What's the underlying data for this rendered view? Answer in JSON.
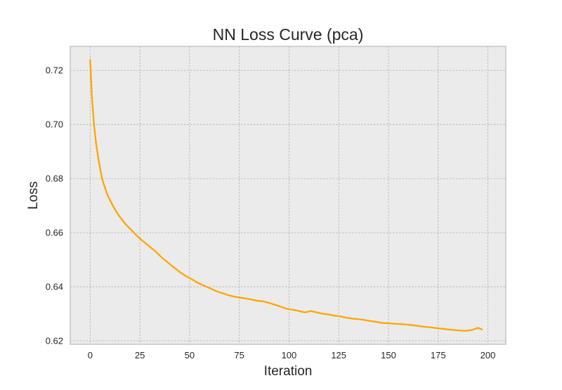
{
  "chart_data": {
    "type": "line",
    "title": "NN Loss Curve (pca)",
    "xlabel": "Iteration",
    "ylabel": "Loss",
    "xlim": [
      -10,
      209
    ],
    "ylim": [
      0.6187,
      0.7289
    ],
    "grid": true,
    "xticks": [
      0,
      25,
      50,
      75,
      100,
      125,
      150,
      175,
      200
    ],
    "xtick_labels": [
      "0",
      "25",
      "50",
      "75",
      "100",
      "125",
      "150",
      "175",
      "200"
    ],
    "yticks": [
      0.62,
      0.64,
      0.66,
      0.68,
      0.7,
      0.72
    ],
    "ytick_labels": [
      "0.62",
      "0.64",
      "0.66",
      "0.68",
      "0.70",
      "0.72"
    ],
    "series": [
      {
        "color": "#FFA500",
        "x": [
          0,
          1,
          2,
          3,
          4,
          5,
          6,
          7,
          8,
          9,
          10,
          12,
          14,
          16,
          18,
          20,
          22,
          24,
          26,
          28,
          30,
          33,
          36,
          39,
          42,
          45,
          48,
          51,
          54,
          57,
          60,
          63,
          66,
          69,
          72,
          75,
          78,
          81,
          84,
          87,
          90,
          93,
          96,
          99,
          102,
          105,
          108,
          111,
          114,
          117,
          120,
          123,
          126,
          129,
          132,
          135,
          138,
          141,
          144,
          147,
          150,
          153,
          156,
          159,
          162,
          165,
          168,
          171,
          174,
          177,
          180,
          183,
          186,
          189,
          192,
          195,
          197
        ],
        "y": [
          0.724,
          0.709,
          0.6995,
          0.693,
          0.688,
          0.6838,
          0.68,
          0.6776,
          0.6755,
          0.6735,
          0.672,
          0.6692,
          0.6668,
          0.6648,
          0.663,
          0.6615,
          0.66,
          0.6585,
          0.6572,
          0.656,
          0.6548,
          0.653,
          0.6508,
          0.649,
          0.6472,
          0.6455,
          0.644,
          0.6428,
          0.6415,
          0.6405,
          0.6395,
          0.6385,
          0.6377,
          0.637,
          0.6364,
          0.636,
          0.6357,
          0.6353,
          0.6348,
          0.6346,
          0.634,
          0.6333,
          0.6326,
          0.6318,
          0.6315,
          0.631,
          0.6305,
          0.631,
          0.6305,
          0.63,
          0.6297,
          0.6293,
          0.629,
          0.6285,
          0.6282,
          0.628,
          0.6277,
          0.6273,
          0.627,
          0.6266,
          0.6265,
          0.6263,
          0.6262,
          0.626,
          0.6258,
          0.6255,
          0.6252,
          0.625,
          0.6247,
          0.6245,
          0.6242,
          0.624,
          0.6238,
          0.6237,
          0.624,
          0.6248,
          0.6242
        ]
      }
    ]
  }
}
